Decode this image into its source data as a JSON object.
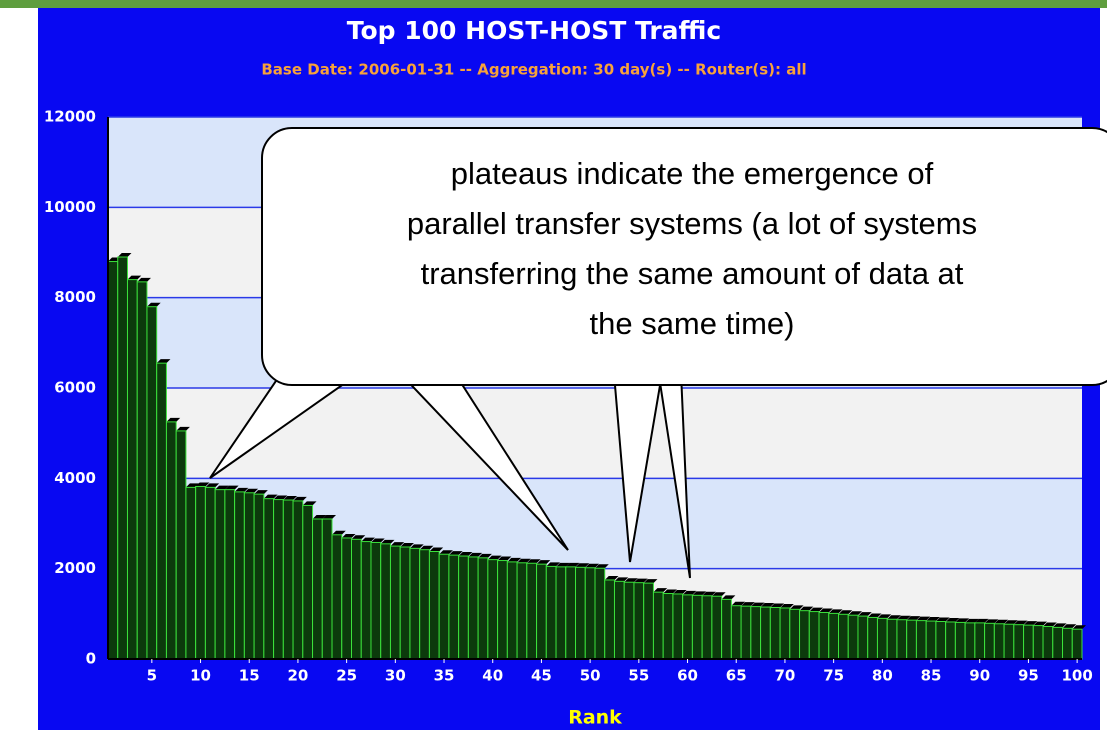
{
  "chart_data": {
    "type": "bar",
    "title": "Top 100 HOST-HOST Traffic",
    "subtitle": "Base Date: 2006-01-31 -- Aggregation: 30 day(s) -- Router(s): all",
    "x_label": "Rank",
    "annotation": [
      "plateaus indicate the emergence of",
      "parallel transfer systems (a lot of systems",
      "transferring the same amount of data at",
      "the same time)"
    ],
    "color": "#0c3a0c",
    "x": [
      1,
      2,
      3,
      4,
      5,
      6,
      7,
      8,
      9,
      10,
      11,
      12,
      13,
      14,
      15,
      16,
      17,
      18,
      19,
      20,
      21,
      22,
      23,
      24,
      25,
      26,
      27,
      28,
      29,
      30,
      31,
      32,
      33,
      34,
      35,
      36,
      37,
      38,
      39,
      40,
      41,
      42,
      43,
      44,
      45,
      46,
      47,
      48,
      49,
      50,
      51,
      52,
      53,
      54,
      55,
      56,
      57,
      58,
      59,
      60,
      61,
      62,
      63,
      64,
      65,
      66,
      67,
      68,
      69,
      70,
      71,
      72,
      73,
      74,
      75,
      76,
      77,
      78,
      79,
      80,
      81,
      82,
      83,
      84,
      85,
      86,
      87,
      88,
      89,
      90,
      91,
      92,
      93,
      94,
      95,
      96,
      97,
      98,
      99,
      100
    ],
    "values": [
      8800,
      8900,
      8400,
      8350,
      7800,
      6550,
      5250,
      5050,
      3800,
      3820,
      3800,
      3750,
      3750,
      3700,
      3680,
      3650,
      3550,
      3530,
      3520,
      3500,
      3400,
      3100,
      3100,
      2750,
      2680,
      2650,
      2600,
      2580,
      2550,
      2500,
      2480,
      2450,
      2420,
      2380,
      2320,
      2300,
      2280,
      2260,
      2240,
      2200,
      2180,
      2150,
      2130,
      2120,
      2100,
      2050,
      2040,
      2040,
      2030,
      2020,
      2010,
      1750,
      1720,
      1700,
      1690,
      1680,
      1480,
      1450,
      1440,
      1420,
      1410,
      1400,
      1390,
      1320,
      1180,
      1170,
      1160,
      1150,
      1140,
      1130,
      1100,
      1070,
      1050,
      1030,
      1010,
      990,
      970,
      950,
      920,
      900,
      880,
      870,
      860,
      850,
      840,
      830,
      820,
      810,
      800,
      800,
      790,
      780,
      770,
      760,
      750,
      740,
      720,
      700,
      680,
      660
    ],
    "xlim": [
      0.5,
      100.5
    ],
    "xticks": [
      5,
      10,
      15,
      20,
      25,
      30,
      35,
      40,
      45,
      50,
      55,
      60,
      65,
      70,
      75,
      80,
      85,
      90,
      95,
      100
    ],
    "ylim": [
      0,
      12000
    ],
    "yticks": [
      0,
      2000,
      4000,
      6000,
      8000,
      10000,
      12000
    ],
    "grid": true
  }
}
